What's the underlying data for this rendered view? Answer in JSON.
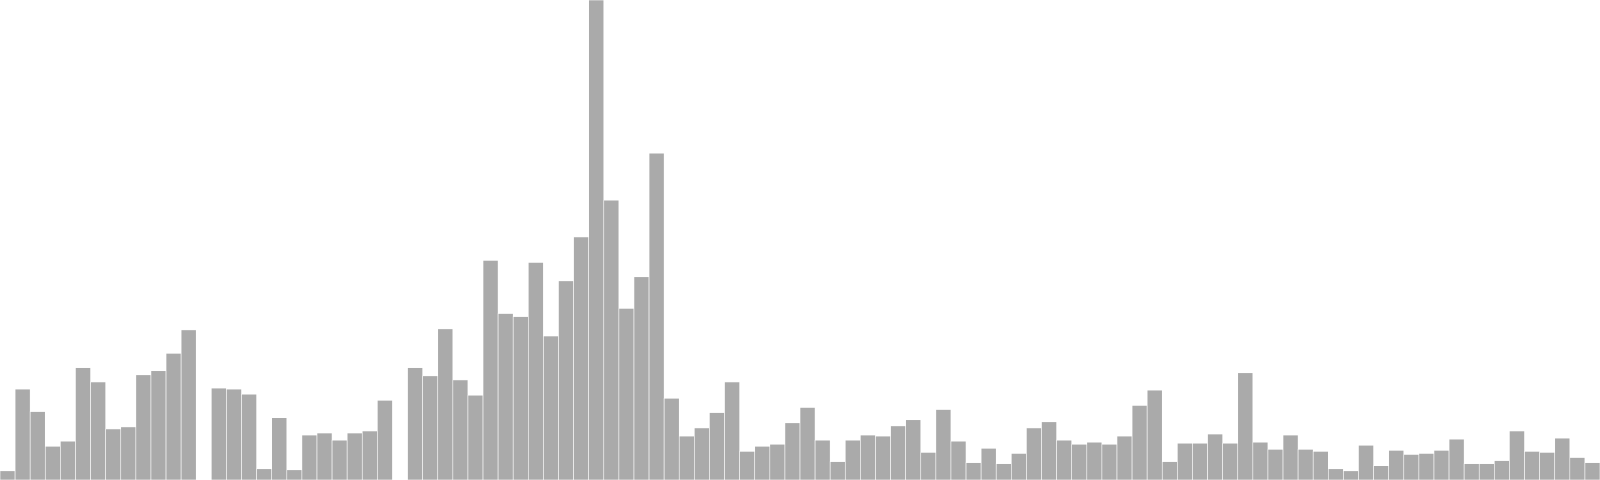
{
  "chart_data": {
    "type": "bar",
    "title": "",
    "xlabel": "",
    "ylabel": "",
    "grid": false,
    "legend": "none",
    "bar_color": "#aaaaaa",
    "ylim": [
      0,
      470
    ],
    "values": [
      9,
      89,
      67,
      33,
      38,
      110,
      96,
      50,
      52,
      103,
      107,
      124,
      147,
      0,
      90,
      89,
      84,
      11,
      61,
      10,
      44,
      46,
      39,
      46,
      48,
      78,
      0,
      110,
      102,
      148,
      98,
      83,
      215,
      163,
      160,
      213,
      141,
      195,
      238,
      470,
      274,
      168,
      199,
      320,
      80,
      43,
      51,
      66,
      96,
      28,
      33,
      35,
      56,
      71,
      39,
      18,
      39,
      44,
      43,
      53,
      59,
      27,
      69,
      38,
      17,
      31,
      16,
      26,
      51,
      57,
      39,
      35,
      37,
      35,
      43,
      73,
      88,
      18,
      36,
      36,
      45,
      36,
      105,
      37,
      30,
      44,
      30,
      28,
      11,
      9,
      34,
      14,
      29,
      25,
      26,
      29,
      40,
      16,
      16,
      19,
      48,
      28,
      27,
      41,
      22,
      17
    ]
  }
}
